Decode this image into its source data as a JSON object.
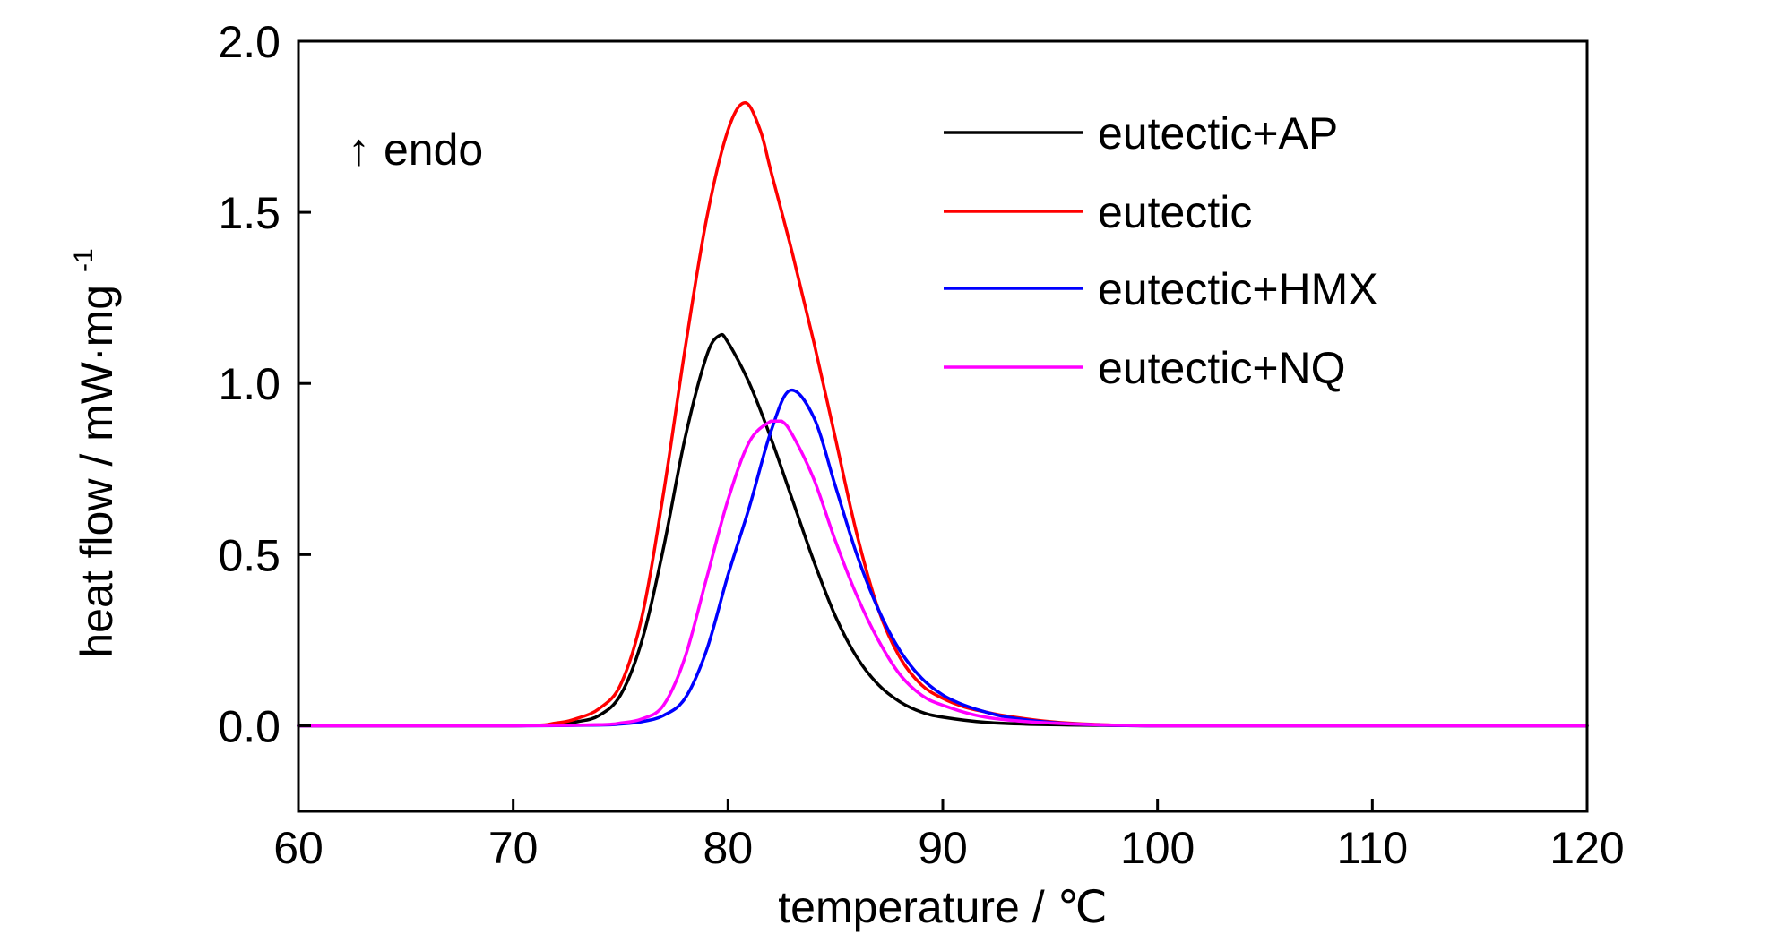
{
  "chart_data": {
    "type": "line",
    "title": "",
    "xlabel": "temperature / ℃",
    "ylabel": {
      "main": "heat flow / mW·mg",
      "superscript": "-1"
    },
    "xlim": [
      60,
      120
    ],
    "ylim": [
      -0.25,
      2.0
    ],
    "x_ticks": [
      60,
      70,
      80,
      90,
      100,
      110,
      120
    ],
    "y_ticks": [
      0.0,
      0.5,
      1.0,
      1.5,
      2.0
    ],
    "x_tick_labels": [
      "60",
      "70",
      "80",
      "90",
      "100",
      "110",
      "120"
    ],
    "y_tick_labels": [
      "0.0",
      "0.5",
      "1.0",
      "1.5",
      "2.0"
    ],
    "grid": false,
    "legend_position": "top-right",
    "annotation": {
      "arrow": "↑",
      "text": "endo"
    },
    "series": [
      {
        "name": "eutectic+AP",
        "color": "#000000",
        "x": [
          60,
          70,
          72,
          73,
          74,
          75,
          76,
          77,
          78,
          79,
          79.6,
          80,
          81,
          82,
          83,
          84,
          85,
          86,
          87,
          88,
          89,
          90,
          92,
          95,
          100,
          110,
          120
        ],
        "y": [
          0,
          0,
          0.005,
          0.012,
          0.03,
          0.09,
          0.25,
          0.52,
          0.84,
          1.08,
          1.14,
          1.12,
          1.0,
          0.84,
          0.66,
          0.48,
          0.32,
          0.2,
          0.12,
          0.07,
          0.04,
          0.025,
          0.01,
          0.003,
          0,
          0,
          0
        ]
      },
      {
        "name": "eutectic",
        "color": "#ff0000",
        "x": [
          60,
          70,
          72,
          73,
          74,
          75,
          76,
          77,
          78,
          79,
          80,
          80.8,
          81.5,
          82,
          83,
          84,
          85,
          86,
          87,
          88,
          89,
          90,
          91,
          92,
          93,
          95,
          97,
          100,
          110,
          120
        ],
        "y": [
          0,
          0,
          0.008,
          0.022,
          0.05,
          0.12,
          0.32,
          0.68,
          1.1,
          1.48,
          1.74,
          1.82,
          1.74,
          1.62,
          1.38,
          1.12,
          0.84,
          0.56,
          0.34,
          0.2,
          0.12,
          0.08,
          0.055,
          0.04,
          0.028,
          0.012,
          0.004,
          0,
          0,
          0
        ]
      },
      {
        "name": "eutectic+HMX",
        "color": "#0000ff",
        "x": [
          60,
          70,
          74,
          75,
          76,
          77,
          78,
          79,
          80,
          81,
          82,
          82.9,
          84,
          85,
          86,
          87,
          88,
          89,
          90,
          91,
          92,
          93,
          95,
          97,
          100,
          110,
          120
        ],
        "y": [
          0,
          0,
          0.002,
          0.005,
          0.012,
          0.03,
          0.08,
          0.22,
          0.44,
          0.64,
          0.86,
          0.98,
          0.9,
          0.7,
          0.5,
          0.34,
          0.22,
          0.14,
          0.09,
          0.06,
          0.04,
          0.025,
          0.01,
          0.003,
          0,
          0,
          0
        ]
      },
      {
        "name": "eutectic+NQ",
        "color": "#ff00ff",
        "x": [
          60,
          70,
          74,
          75,
          76,
          77,
          78,
          79,
          80,
          81,
          82,
          82.5,
          83,
          84,
          85,
          86,
          87,
          88,
          89,
          90,
          92,
          95,
          100,
          110,
          120
        ],
        "y": [
          0,
          0,
          0.003,
          0.008,
          0.02,
          0.06,
          0.2,
          0.43,
          0.66,
          0.83,
          0.89,
          0.89,
          0.85,
          0.72,
          0.54,
          0.38,
          0.25,
          0.15,
          0.09,
          0.06,
          0.025,
          0.008,
          0,
          0,
          0
        ]
      }
    ]
  }
}
